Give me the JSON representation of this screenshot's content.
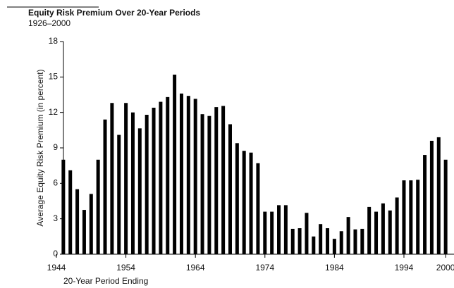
{
  "chart_data": {
    "type": "bar",
    "title": "Equity Risk Premium Over 20-Year Periods",
    "subtitle": "1926–2000",
    "ylabel": "Average Equity Risk Premium (in percent)",
    "xlabel": "20-Year Period Ending",
    "x": [
      1945,
      1946,
      1947,
      1948,
      1949,
      1950,
      1951,
      1952,
      1953,
      1954,
      1955,
      1956,
      1957,
      1958,
      1959,
      1960,
      1961,
      1962,
      1963,
      1964,
      1965,
      1966,
      1967,
      1968,
      1969,
      1970,
      1971,
      1972,
      1973,
      1974,
      1975,
      1976,
      1977,
      1978,
      1979,
      1980,
      1981,
      1982,
      1983,
      1984,
      1985,
      1986,
      1987,
      1988,
      1989,
      1990,
      1991,
      1992,
      1993,
      1994,
      1995,
      1996,
      1997,
      1998,
      1999,
      2000
    ],
    "values": [
      8.0,
      7.1,
      5.5,
      3.75,
      5.1,
      8.0,
      11.4,
      12.8,
      10.1,
      12.8,
      12.0,
      10.65,
      11.8,
      12.4,
      12.9,
      13.3,
      15.2,
      13.6,
      13.4,
      13.15,
      11.85,
      11.7,
      12.45,
      12.55,
      11.0,
      9.4,
      8.75,
      8.6,
      7.7,
      3.6,
      3.6,
      4.15,
      4.15,
      2.15,
      2.2,
      3.5,
      1.5,
      2.55,
      2.2,
      1.3,
      1.95,
      3.15,
      2.1,
      2.15,
      4.0,
      3.6,
      4.3,
      3.7,
      4.8,
      6.25,
      6.25,
      6.3,
      8.4,
      9.6,
      9.9,
      8.0
    ],
    "color": "#000000",
    "xlim": [
      1944,
      2001
    ],
    "xticks": [
      1944,
      1954,
      1964,
      1974,
      1984,
      1994,
      2000
    ],
    "ylim": [
      0,
      18
    ],
    "yticks": [
      0,
      3,
      6,
      9,
      12,
      15,
      18
    ],
    "grid": false
  }
}
